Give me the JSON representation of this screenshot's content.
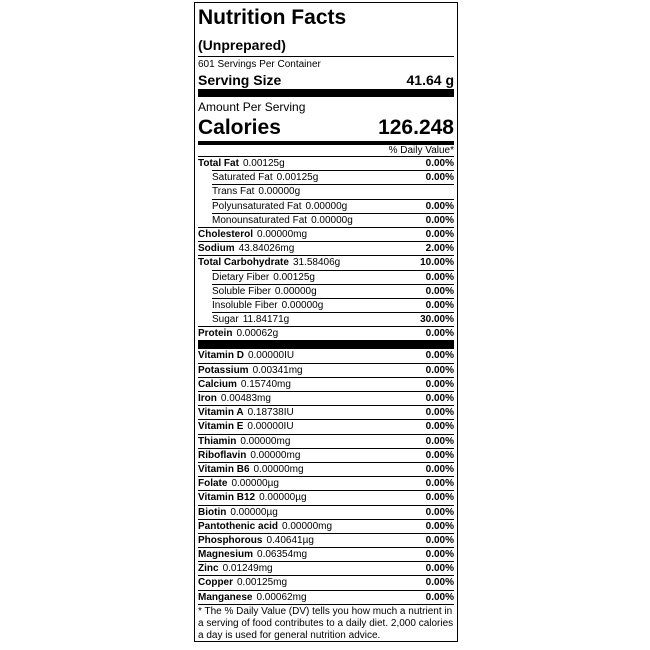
{
  "title": "Nutrition Facts",
  "subtitle": "(Unprepared)",
  "servings": "601 Servings Per Container",
  "serving_size": {
    "label": "Serving Size",
    "value": "41.64 g"
  },
  "amount_per_serving": "Amount Per Serving",
  "calories": {
    "label": "Calories",
    "value": "126.248"
  },
  "dv_header": "% Daily Value*",
  "nutrients": [
    {
      "name": "Total Fat",
      "amount": "0.00125g",
      "dv": "0.00%",
      "bold": true,
      "indent": false
    },
    {
      "name": "Saturated Fat",
      "amount": "0.00125g",
      "dv": "0.00%",
      "bold": false,
      "indent": true
    },
    {
      "name": "Trans Fat",
      "amount": "0.00000g",
      "bold": false,
      "indent": true
    },
    {
      "name": "Polyunsaturated Fat",
      "amount": "0.00000g",
      "dv": "0.00%",
      "bold": false,
      "indent": true
    },
    {
      "name": "Monounsaturated Fat",
      "amount": "0.00000g",
      "dv": "0.00%",
      "bold": false,
      "indent": true
    },
    {
      "name": "Cholesterol",
      "amount": "0.00000mg",
      "dv": "0.00%",
      "bold": true,
      "indent": false
    },
    {
      "name": "Sodium",
      "amount": "43.84026mg",
      "dv": "2.00%",
      "bold": true,
      "indent": false
    },
    {
      "name": "Total Carbohydrate",
      "amount": "31.58406g",
      "dv": "10.00%",
      "bold": true,
      "indent": false
    },
    {
      "name": "Dietary Fiber",
      "amount": "0.00125g",
      "dv": "0.00%",
      "bold": false,
      "indent": true
    },
    {
      "name": "Soluble Fiber",
      "amount": "0.00000g",
      "dv": "0.00%",
      "bold": false,
      "indent": true
    },
    {
      "name": "Insoluble Fiber",
      "amount": "0.00000g",
      "dv": "0.00%",
      "bold": false,
      "indent": true
    },
    {
      "name": "Sugar",
      "amount": "11.84171g",
      "dv": "30.00%",
      "bold": false,
      "indent": true
    },
    {
      "name": "Protein",
      "amount": "0.00062g",
      "dv": "0.00%",
      "bold": true,
      "indent": false
    }
  ],
  "vitamins": [
    {
      "name": "Vitamin D",
      "amount": "0.00000IU",
      "dv": "0.00%",
      "bold": true,
      "indent": false
    },
    {
      "name": "Potassium",
      "amount": "0.00341mg",
      "dv": "0.00%",
      "bold": true,
      "indent": false
    },
    {
      "name": "Calcium",
      "amount": "0.15740mg",
      "dv": "0.00%",
      "bold": true,
      "indent": false
    },
    {
      "name": "Iron",
      "amount": "0.00483mg",
      "dv": "0.00%",
      "bold": true,
      "indent": false
    },
    {
      "name": "Vitamin A",
      "amount": "0.18738IU",
      "dv": "0.00%",
      "bold": true,
      "indent": false
    },
    {
      "name": "Vitamin E",
      "amount": "0.00000IU",
      "dv": "0.00%",
      "bold": true,
      "indent": false
    },
    {
      "name": "Thiamin",
      "amount": "0.00000mg",
      "dv": "0.00%",
      "bold": true,
      "indent": false
    },
    {
      "name": "Riboflavin",
      "amount": "0.00000mg",
      "dv": "0.00%",
      "bold": true,
      "indent": false
    },
    {
      "name": "Vitamin B6",
      "amount": "0.00000mg",
      "dv": "0.00%",
      "bold": true,
      "indent": false
    },
    {
      "name": "Folate",
      "amount": "0.00000µg",
      "dv": "0.00%",
      "bold": true,
      "indent": false
    },
    {
      "name": "Vitamin B12",
      "amount": "0.00000µg",
      "dv": "0.00%",
      "bold": true,
      "indent": false
    },
    {
      "name": "Biotin",
      "amount": "0.00000µg",
      "dv": "0.00%",
      "bold": true,
      "indent": false
    },
    {
      "name": "Pantothenic acid",
      "amount": "0.00000mg",
      "dv": "0.00%",
      "bold": true,
      "indent": false
    },
    {
      "name": "Phosphorous",
      "amount": "0.40641µg",
      "dv": "0.00%",
      "bold": true,
      "indent": false
    },
    {
      "name": "Magnesium",
      "amount": "0.06354mg",
      "dv": "0.00%",
      "bold": true,
      "indent": false
    },
    {
      "name": "Zinc",
      "amount": "0.01249mg",
      "dv": "0.00%",
      "bold": true,
      "indent": false
    },
    {
      "name": "Copper",
      "amount": "0.00125mg",
      "dv": "0.00%",
      "bold": true,
      "indent": false
    },
    {
      "name": "Manganese",
      "amount": "0.00062mg",
      "dv": "0.00%",
      "bold": true,
      "indent": false
    }
  ],
  "footnote": "* The % Daily Value (DV) tells you how much a nutrient in a serving of food contributes to a daily diet. 2,000 calories a day is used for general nutrition advice."
}
